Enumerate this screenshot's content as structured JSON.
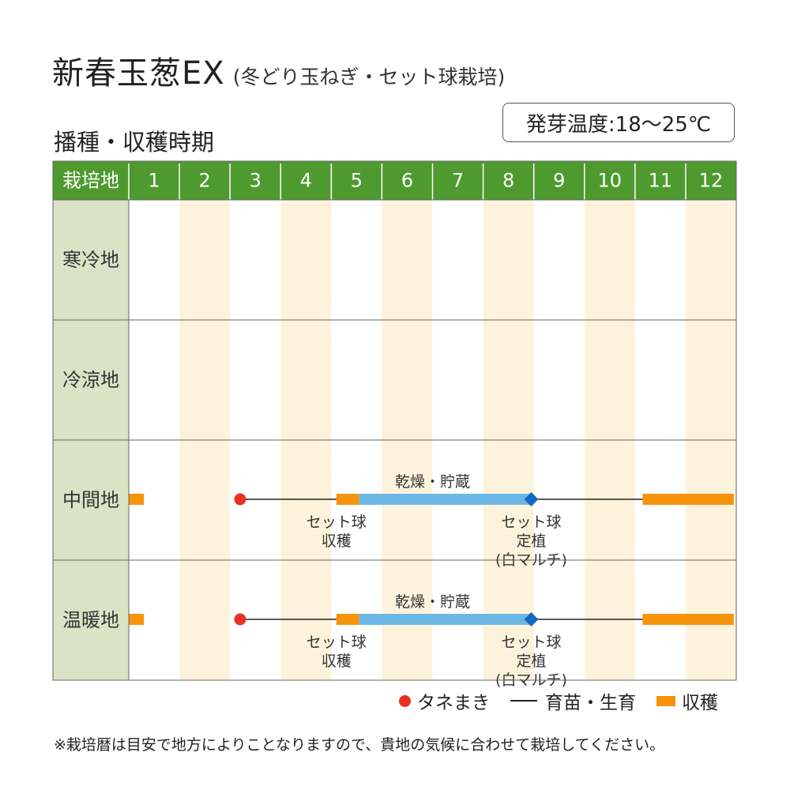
{
  "title": {
    "main": "新春玉葱EX",
    "sub": "(冬どり玉ねぎ・セット球栽培)"
  },
  "section_title": "播種・収穫時期",
  "germination_temp": "発芽温度:18〜25℃",
  "colors": {
    "header_green": "#4e9a2f",
    "region_cell": "#dae3c6",
    "stripe": "#fdf3dc",
    "sowing": "#e8321e",
    "growing": "#222222",
    "harvest": "#f7930a",
    "drying": "#6db7e6",
    "planting": "#1667c3"
  },
  "legend": {
    "sowing": "タネまき",
    "growing": "育苗・生育",
    "harvest": "収穫"
  },
  "note": "※栽培暦は目安で地方によりことなりますので、貴地の気候に合わせて栽培してください。",
  "chart_data": {
    "type": "table",
    "header_label": "栽培地",
    "months": [
      "1",
      "2",
      "3",
      "4",
      "5",
      "6",
      "7",
      "8",
      "9",
      "10",
      "11",
      "12"
    ],
    "regions": [
      {
        "name": "寒冷地",
        "events": []
      },
      {
        "name": "冷涼地",
        "events": []
      },
      {
        "name": "中間地",
        "events": [
          {
            "kind": "harvest",
            "start": 1.0,
            "end": 1.3
          },
          {
            "kind": "sowing",
            "at": 3.2
          },
          {
            "kind": "growing",
            "start": 3.2,
            "end": 5.1
          },
          {
            "kind": "harvest",
            "start": 5.1,
            "end": 5.55
          },
          {
            "kind": "drying",
            "start": 5.55,
            "end": 8.95
          },
          {
            "kind": "planting",
            "at": 8.95
          },
          {
            "kind": "growing",
            "start": 8.95,
            "end": 11.15
          },
          {
            "kind": "harvest",
            "start": 11.15,
            "end": 12.95
          }
        ],
        "labels": [
          {
            "text": "乾燥・貯蔵",
            "at": 7.0,
            "pos": "above"
          },
          {
            "text": [
              "セット球",
              "収穫"
            ],
            "at": 5.1,
            "pos": "below"
          },
          {
            "text": [
              "セット球",
              "定植",
              "(白マルチ)"
            ],
            "at": 8.95,
            "pos": "below"
          }
        ]
      },
      {
        "name": "温暖地",
        "events": [
          {
            "kind": "harvest",
            "start": 1.0,
            "end": 1.3
          },
          {
            "kind": "sowing",
            "at": 3.2
          },
          {
            "kind": "growing",
            "start": 3.2,
            "end": 5.1
          },
          {
            "kind": "harvest",
            "start": 5.1,
            "end": 5.55
          },
          {
            "kind": "drying",
            "start": 5.55,
            "end": 8.95
          },
          {
            "kind": "planting",
            "at": 8.95
          },
          {
            "kind": "growing",
            "start": 8.95,
            "end": 11.15
          },
          {
            "kind": "harvest",
            "start": 11.15,
            "end": 12.95
          }
        ],
        "labels": [
          {
            "text": "乾燥・貯蔵",
            "at": 7.0,
            "pos": "above"
          },
          {
            "text": [
              "セット球",
              "収穫"
            ],
            "at": 5.1,
            "pos": "below"
          },
          {
            "text": [
              "セット球",
              "定植",
              "(白マルチ)"
            ],
            "at": 8.95,
            "pos": "below"
          }
        ]
      }
    ]
  }
}
